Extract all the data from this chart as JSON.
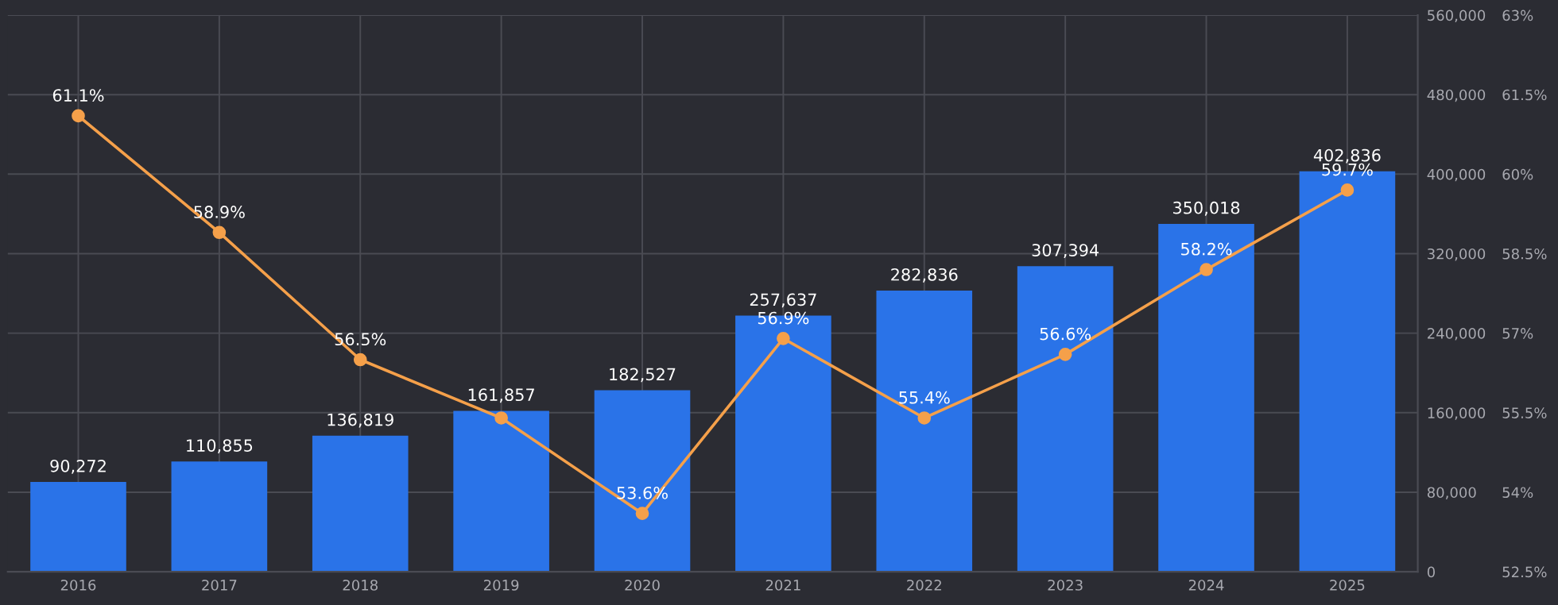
{
  "chart_data": {
    "type": "bar",
    "categories": [
      "2016",
      "2017",
      "2018",
      "2019",
      "2020",
      "2021",
      "2022",
      "2023",
      "2024",
      "2025"
    ],
    "series": [
      {
        "color": "#2a73e8",
        "values": [
          90272,
          110855,
          136819,
          161857,
          182527,
          257637,
          282836,
          307394,
          350018,
          402836
        ],
        "value_labels": [
          "90,272",
          "110,855",
          "136,819",
          "161,857",
          "182,527",
          "257,637",
          "282,836",
          "307,394",
          "350,018",
          "402,836"
        ]
      },
      {
        "type": "line",
        "axis": "y2",
        "color": "#f5a04a",
        "marker": "circle",
        "line_style": "solid",
        "values": [
          61.1,
          58.9,
          56.5,
          55.4,
          53.6,
          56.9,
          55.4,
          56.6,
          58.2,
          59.7
        ],
        "value_labels": [
          "61.1%",
          "58.9%",
          "56.5%",
          null,
          "53.6%",
          "56.9%",
          "55.4%",
          "56.6%",
          "58.2%",
          "59.7%"
        ]
      }
    ],
    "ylim": [
      0,
      560000
    ],
    "yticks": [
      0,
      {
        "value": 80000,
        "label": "80,000"
      },
      {
        "value": 160000,
        "label": "160,000"
      },
      {
        "value": 240000,
        "label": "240,000"
      },
      {
        "value": 320000,
        "label": "320,000"
      },
      {
        "value": 400000,
        "label": "400,000"
      },
      {
        "value": 480000,
        "label": "480,000"
      },
      {
        "value": 560000,
        "label": "560,000"
      }
    ],
    "y2lim": [
      52.5,
      63
    ],
    "y2ticks": [
      {
        "value": 52.5,
        "label": "52.5%"
      },
      {
        "value": 54,
        "label": "54%"
      },
      {
        "value": 55.5,
        "label": "55.5%"
      },
      {
        "value": 57,
        "label": "57%"
      },
      {
        "value": 58.5,
        "label": "58.5%"
      },
      {
        "value": 60,
        "label": "60%"
      },
      {
        "value": 61.5,
        "label": "61.5%"
      },
      {
        "value": 63,
        "label": "63%"
      }
    ],
    "grid": true,
    "legend": false
  }
}
